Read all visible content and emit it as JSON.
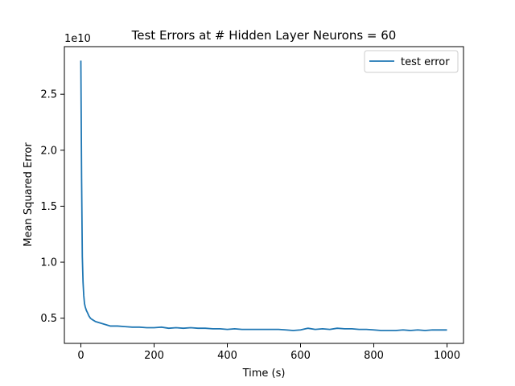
{
  "chart_data": {
    "type": "line",
    "title": "Test Errors at # Hidden Layer Neurons = 60",
    "xlabel": "Time (s)",
    "ylabel": "Mean Squared Error",
    "y_offset_label": "1e10",
    "xlim": [
      -45,
      1045
    ],
    "ylim": [
      0.275,
      2.925
    ],
    "x_ticks": [
      0,
      200,
      400,
      600,
      800,
      1000
    ],
    "x_tick_labels": [
      "0",
      "200",
      "400",
      "600",
      "800",
      "1000"
    ],
    "y_ticks": [
      0.5,
      1.0,
      1.5,
      2.0,
      2.5
    ],
    "y_tick_labels": [
      "0.5",
      "1.0",
      "1.5",
      "2.0",
      "2.5"
    ],
    "grid": false,
    "legend_position": "top-right",
    "series": [
      {
        "name": "test error",
        "color": "#1f77b4",
        "x": [
          0,
          2,
          4,
          6,
          8,
          10,
          12,
          15,
          18,
          22,
          26,
          30,
          40,
          50,
          60,
          70,
          80,
          90,
          100,
          120,
          140,
          160,
          180,
          200,
          220,
          240,
          260,
          280,
          300,
          320,
          340,
          360,
          380,
          400,
          420,
          440,
          460,
          480,
          500,
          520,
          540,
          560,
          580,
          600,
          620,
          640,
          660,
          680,
          700,
          720,
          740,
          760,
          780,
          800,
          820,
          840,
          860,
          880,
          900,
          920,
          940,
          960,
          980,
          1000
        ],
        "values": [
          2.8,
          1.75,
          1.05,
          0.82,
          0.7,
          0.63,
          0.6,
          0.57,
          0.55,
          0.52,
          0.5,
          0.49,
          0.47,
          0.46,
          0.45,
          0.44,
          0.43,
          0.43,
          0.43,
          0.425,
          0.42,
          0.42,
          0.415,
          0.415,
          0.42,
          0.41,
          0.415,
          0.41,
          0.415,
          0.41,
          0.41,
          0.405,
          0.405,
          0.4,
          0.405,
          0.4,
          0.4,
          0.4,
          0.4,
          0.4,
          0.4,
          0.395,
          0.39,
          0.395,
          0.41,
          0.4,
          0.405,
          0.4,
          0.41,
          0.405,
          0.405,
          0.4,
          0.4,
          0.395,
          0.39,
          0.39,
          0.39,
          0.395,
          0.39,
          0.395,
          0.39,
          0.395,
          0.395,
          0.395
        ]
      }
    ]
  }
}
